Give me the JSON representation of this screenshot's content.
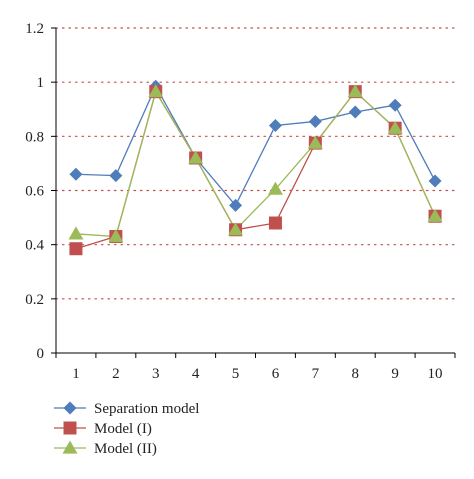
{
  "chart_data": {
    "type": "line",
    "title": "",
    "xlabel": "",
    "ylabel": "",
    "x": [
      1,
      2,
      3,
      4,
      5,
      6,
      7,
      8,
      9,
      10
    ],
    "x_tick_labels": [
      "1",
      "2",
      "3",
      "4",
      "5",
      "6",
      "7",
      "8",
      "9",
      "10"
    ],
    "y_tick_labels": [
      "0",
      "0.2",
      "0.4",
      "0.6",
      "0.8",
      "1",
      "1.2"
    ],
    "y_ticks": [
      0,
      0.2,
      0.4,
      0.6,
      0.8,
      1.0,
      1.2
    ],
    "ylim": [
      0,
      1.2
    ],
    "grid": "horizontal dotted red",
    "legend_position": "bottom-left",
    "series": [
      {
        "name": "Separation model",
        "marker": "diamond",
        "color": "#4f7cba",
        "values": [
          0.66,
          0.655,
          0.985,
          0.72,
          0.545,
          0.84,
          0.855,
          0.89,
          0.915,
          0.635
        ]
      },
      {
        "name": "Model (I)",
        "marker": "square",
        "color": "#c0504d",
        "values": [
          0.385,
          0.43,
          0.965,
          0.72,
          0.455,
          0.48,
          0.775,
          0.965,
          0.83,
          0.505
        ]
      },
      {
        "name": "Model (II)",
        "marker": "triangle",
        "color": "#9bbb59",
        "values": [
          0.44,
          0.43,
          0.965,
          0.72,
          0.455,
          0.605,
          0.775,
          0.965,
          0.83,
          0.505
        ]
      }
    ],
    "colors": {
      "axis": "#000000",
      "grid": "#c0504d"
    }
  }
}
